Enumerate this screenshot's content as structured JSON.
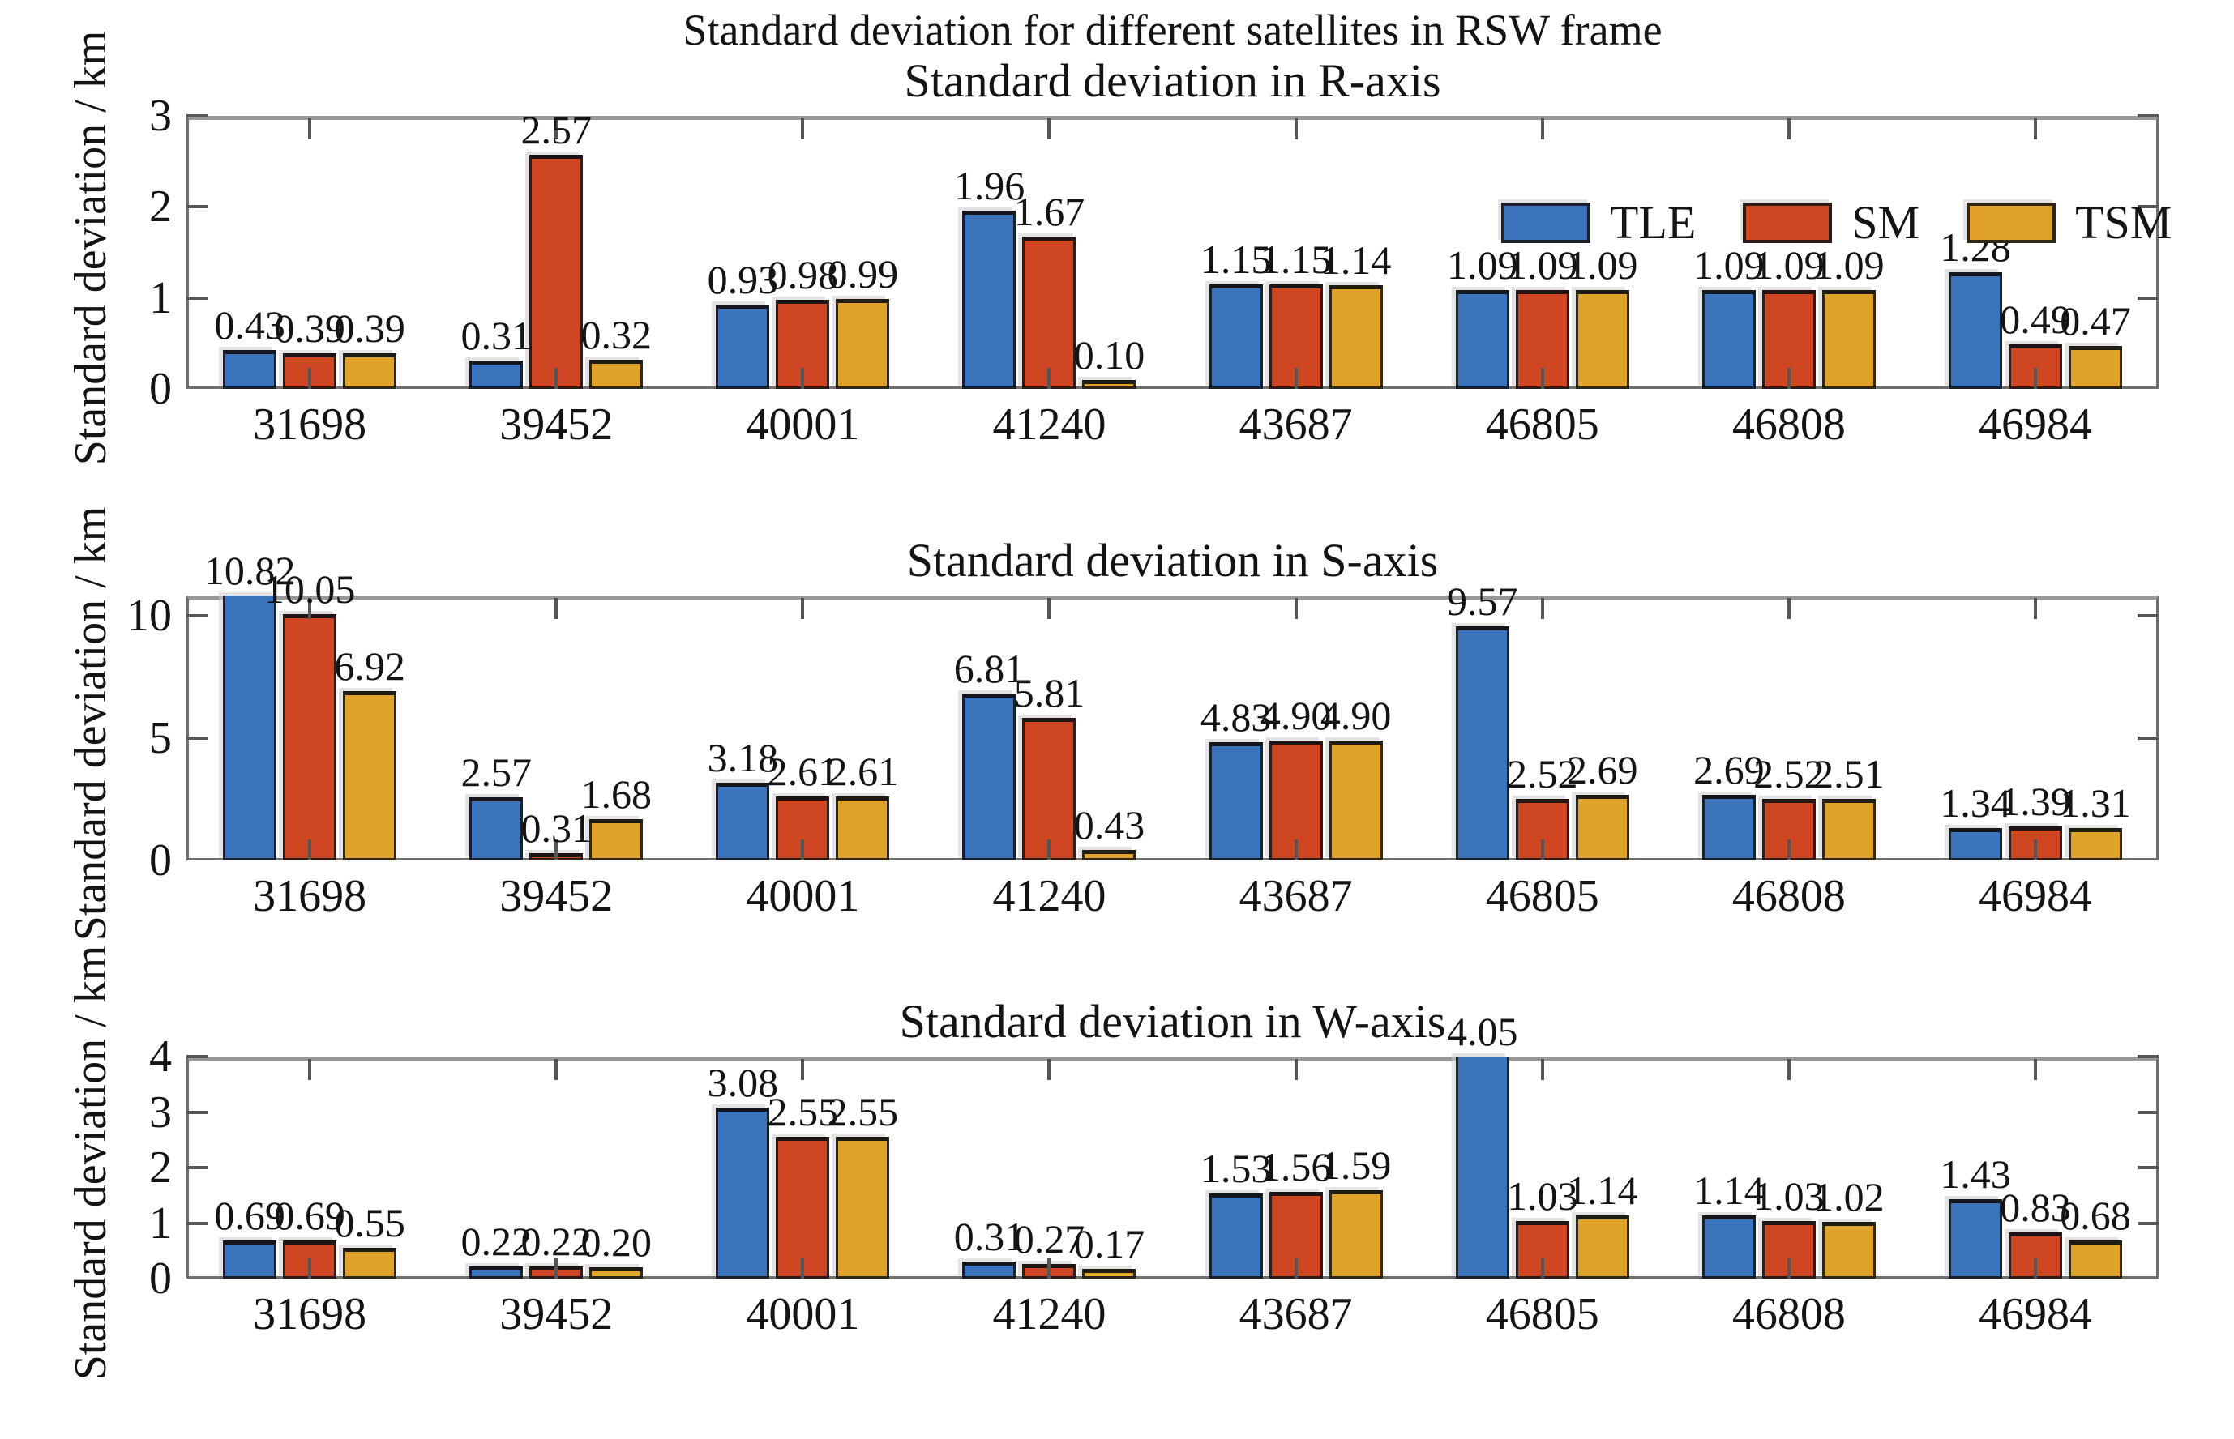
{
  "figure_title": "Standard deviation for different satellites in RSW frame",
  "y_axis_label": "Standard deviation / km",
  "categories": [
    "31698",
    "39452",
    "40001",
    "41240",
    "43687",
    "46805",
    "46808",
    "46984"
  ],
  "legend": {
    "position": "top-right-inside-first-subplot",
    "items": [
      {
        "label": "TLE",
        "color": "#3B74BC"
      },
      {
        "label": "SM",
        "color": "#CE4722"
      },
      {
        "label": "TSM",
        "color": "#DFA32B"
      }
    ]
  },
  "colors": {
    "TLE": "#3B74BC",
    "SM": "#CE4722",
    "TSM": "#DFA32B",
    "frame": "#6e6e6e",
    "tick": "#565656",
    "text": "#141414"
  },
  "chart_data": [
    {
      "type": "bar",
      "title": "Standard deviation in R-axis",
      "xlabel": "",
      "ylabel": "Standard deviation / km",
      "categories": [
        "31698",
        "39452",
        "40001",
        "41240",
        "43687",
        "46805",
        "46808",
        "46984"
      ],
      "ylim": [
        0,
        3
      ],
      "yticks": [
        0,
        1,
        2,
        3
      ],
      "grid": false,
      "legend_position": "upper right inside",
      "series": [
        {
          "name": "TLE",
          "values": [
            0.43,
            0.31,
            0.93,
            1.96,
            1.15,
            1.09,
            1.09,
            1.28
          ]
        },
        {
          "name": "SM",
          "values": [
            0.39,
            2.57,
            0.98,
            1.67,
            1.15,
            1.09,
            1.09,
            0.49
          ]
        },
        {
          "name": "TSM",
          "values": [
            0.39,
            0.32,
            0.99,
            0.1,
            1.14,
            1.09,
            1.09,
            0.47
          ]
        }
      ]
    },
    {
      "type": "bar",
      "title": "Standard deviation in S-axis",
      "xlabel": "",
      "ylabel": "Standard deviation / km",
      "categories": [
        "31698",
        "39452",
        "40001",
        "41240",
        "43687",
        "46805",
        "46808",
        "46984"
      ],
      "ylim": [
        0,
        10.82
      ],
      "yticks": [
        0,
        5,
        10
      ],
      "grid": false,
      "series": [
        {
          "name": "TLE",
          "values": [
            10.82,
            2.57,
            3.18,
            6.81,
            4.83,
            9.57,
            2.69,
            1.34
          ]
        },
        {
          "name": "SM",
          "values": [
            10.05,
            0.31,
            2.61,
            5.81,
            4.9,
            2.52,
            2.52,
            1.39
          ]
        },
        {
          "name": "TSM",
          "values": [
            6.92,
            1.68,
            2.61,
            0.43,
            4.9,
            2.69,
            2.51,
            1.31
          ]
        }
      ]
    },
    {
      "type": "bar",
      "title": "Standard deviation in W-axis",
      "xlabel": "",
      "ylabel": "Standard deviation / km",
      "categories": [
        "31698",
        "39452",
        "40001",
        "41240",
        "43687",
        "46805",
        "46808",
        "46984"
      ],
      "ylim": [
        0,
        4
      ],
      "yticks": [
        0,
        1,
        2,
        3,
        4
      ],
      "grid": false,
      "series": [
        {
          "name": "TLE",
          "values": [
            0.69,
            0.22,
            3.08,
            0.31,
            1.53,
            4.05,
            1.14,
            1.43
          ]
        },
        {
          "name": "SM",
          "values": [
            0.69,
            0.22,
            2.55,
            0.27,
            1.56,
            1.03,
            1.03,
            0.83
          ]
        },
        {
          "name": "TSM",
          "values": [
            0.55,
            0.2,
            2.55,
            0.17,
            1.59,
            1.14,
            1.02,
            0.68
          ]
        }
      ]
    }
  ]
}
